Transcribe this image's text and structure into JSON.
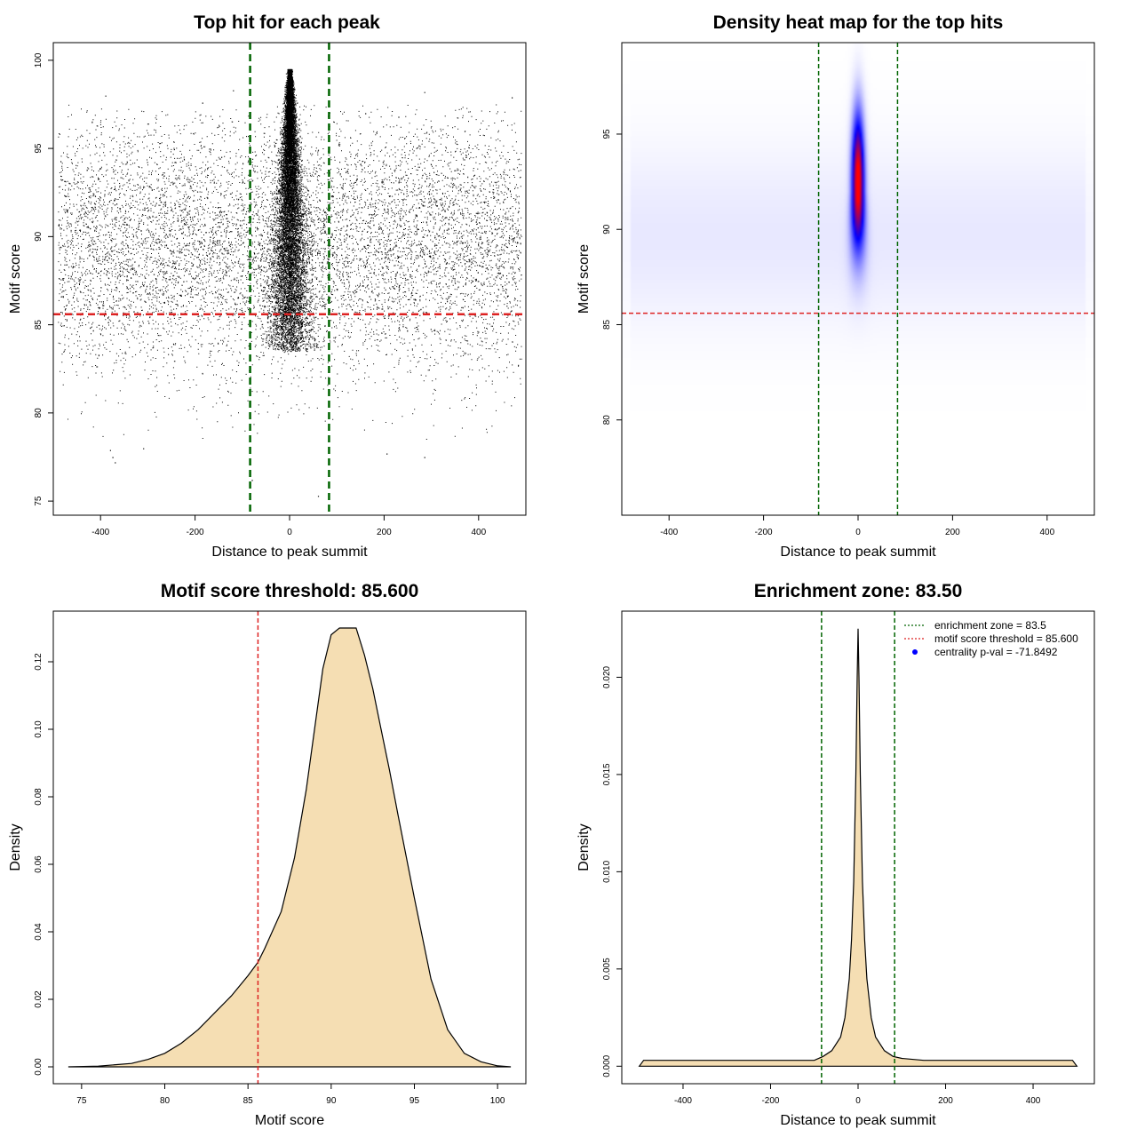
{
  "chart_data": [
    {
      "type": "scatter",
      "title": "Top hit for each peak",
      "xlabel": "Distance to peak summit",
      "ylabel": "Motif score",
      "xlim": [
        -500,
        500
      ],
      "ylim": [
        74.2,
        101.0
      ],
      "xticks": [
        -400,
        -200,
        0,
        200,
        400
      ],
      "yticks": [
        75,
        80,
        85,
        90,
        95,
        100
      ],
      "point_color": "#000000",
      "background": {
        "x_range": [
          -490,
          490
        ],
        "y_mean": 89.6,
        "y_spread": 3.6,
        "n_points": 9000
      },
      "central_cluster": {
        "x_center": 0,
        "x_spread_at_base": 55,
        "y_range": [
          83.5,
          99.5
        ],
        "n_points": 14000
      },
      "outliers": [
        {
          "x": -375,
          "y": 77.5
        },
        {
          "x": -380,
          "y": 77.9
        },
        {
          "x": -370,
          "y": 77.2
        },
        {
          "x": -310,
          "y": 78.0
        },
        {
          "x": -185,
          "y": 97.6
        },
        {
          "x": -390,
          "y": 98.0
        },
        {
          "x": -120,
          "y": 98.3
        },
        {
          "x": 285,
          "y": 77.5
        },
        {
          "x": 205,
          "y": 77.7
        },
        {
          "x": 60,
          "y": 75.3
        },
        {
          "x": -80,
          "y": 76.2
        },
        {
          "x": 285,
          "y": 98.2
        },
        {
          "x": 470,
          "y": 97.9
        },
        {
          "x": 230,
          "y": 96.8
        },
        {
          "x": 160,
          "y": 97.0
        }
      ],
      "vlines": {
        "x": [
          -83.5,
          83.5
        ],
        "color": "#006400",
        "style": "dashed"
      },
      "hlines": {
        "y": [
          85.6
        ],
        "color": "#dd2222",
        "style": "dashed"
      }
    },
    {
      "type": "heatmap",
      "title": "Density heat map for the top hits",
      "xlabel": "Distance to peak summit",
      "ylabel": "Motif score",
      "xlim": [
        -500,
        500
      ],
      "ylim": [
        75.0,
        99.8
      ],
      "xticks": [
        -400,
        -200,
        0,
        200,
        400
      ],
      "yticks": [
        80,
        85,
        90,
        95
      ],
      "colors": [
        "#ffffff",
        "#0000ff",
        "#ff0000"
      ],
      "peak": {
        "x": 0,
        "y": 92.5
      },
      "vlines": {
        "x": [
          -83.5,
          83.5
        ],
        "color": "#006400",
        "style": "dashed"
      },
      "hlines": {
        "y": [
          85.6
        ],
        "color": "#dd2222",
        "style": "dashed"
      }
    },
    {
      "type": "area",
      "title": "Motif score threshold: 85.600",
      "xlabel": "Motif score",
      "ylabel": "Density",
      "xlim": [
        73.3,
        101.7
      ],
      "ylim": [
        -0.005,
        0.135
      ],
      "xticks": [
        75,
        80,
        85,
        90,
        95,
        100
      ],
      "yticks": [
        0.0,
        0.02,
        0.04,
        0.06,
        0.08,
        0.1,
        0.12
      ],
      "ytick_labels": [
        "0.00",
        "0.02",
        "0.04",
        "0.06",
        "0.08",
        "0.10",
        "0.12"
      ],
      "fill_color": "#f5deb3",
      "x": [
        74.2,
        76,
        78,
        79,
        80,
        81,
        82,
        83,
        84,
        85,
        85.6,
        86,
        87,
        87.8,
        88.5,
        89,
        89.5,
        90,
        90.5,
        91,
        91.5,
        92,
        92.5,
        93,
        93.5,
        94,
        95,
        96,
        97,
        98,
        99,
        100,
        100.8
      ],
      "y": [
        0.0,
        0.0002,
        0.001,
        0.0022,
        0.004,
        0.007,
        0.011,
        0.016,
        0.021,
        0.027,
        0.031,
        0.035,
        0.046,
        0.062,
        0.082,
        0.1,
        0.118,
        0.128,
        0.13,
        0.13,
        0.13,
        0.122,
        0.112,
        0.1,
        0.088,
        0.075,
        0.05,
        0.026,
        0.011,
        0.004,
        0.0015,
        0.0003,
        0.0
      ]
    },
    {
      "type": "area",
      "title": "Enrichment zone: 83.50",
      "xlabel": "Distance to peak summit",
      "ylabel": "Density",
      "xlim": [
        -540,
        540
      ],
      "ylim": [
        -0.0009,
        0.0234
      ],
      "xticks": [
        -400,
        -200,
        0,
        200,
        400
      ],
      "yticks": [
        0.0,
        0.005,
        0.01,
        0.015,
        0.02
      ],
      "ytick_labels": [
        "0.000",
        "0.005",
        "0.010",
        "0.015",
        "0.020"
      ],
      "fill_color": "#f5deb3",
      "x": [
        -500,
        -490,
        -400,
        -300,
        -200,
        -150,
        -100,
        -80,
        -60,
        -40,
        -30,
        -20,
        -15,
        -10,
        -5,
        -2,
        0,
        2,
        5,
        10,
        15,
        20,
        30,
        40,
        60,
        80,
        100,
        150,
        200,
        300,
        400,
        490,
        500
      ],
      "y": [
        0.0,
        0.0003,
        0.0003,
        0.0003,
        0.0003,
        0.0003,
        0.0003,
        0.0005,
        0.0008,
        0.0015,
        0.0025,
        0.0045,
        0.0065,
        0.0095,
        0.015,
        0.02,
        0.0225,
        0.02,
        0.015,
        0.0095,
        0.0065,
        0.0045,
        0.0025,
        0.0015,
        0.0008,
        0.0005,
        0.0004,
        0.0003,
        0.0003,
        0.0003,
        0.0003,
        0.0003,
        0.0
      ],
      "vlines": {
        "x": [
          -83.5,
          83.5
        ],
        "color": "#006400",
        "style": "dashed"
      },
      "legend": {
        "position": "top-right",
        "entries": [
          {
            "label": "enrichment zone = 83.5",
            "color": "#006400",
            "style": "dotted-line"
          },
          {
            "label": "motif score threshold = 85.600",
            "color": "#dd2222",
            "style": "dotted-line"
          },
          {
            "label": "centrality p-val = -71.8492",
            "color": "#0000ff",
            "style": "point"
          }
        ]
      }
    }
  ]
}
